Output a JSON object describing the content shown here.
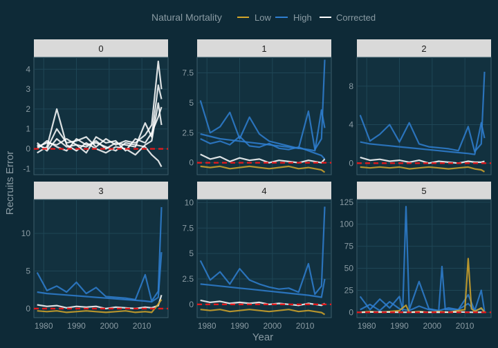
{
  "legend": {
    "title": "Natural Mortality",
    "entries": [
      {
        "label": "Low",
        "color": "#d4a62a"
      },
      {
        "label": "High",
        "color": "#2f7fd1"
      },
      {
        "label": "Corrected",
        "color": "#ffffff"
      }
    ]
  },
  "axis": {
    "xlabel": "Year",
    "ylabel": "Recruits Error"
  },
  "colors": {
    "background": "#0e2a37",
    "panel": "#12313f",
    "grid": "#1f4656",
    "strip": "#d9d9d9",
    "zero_line": "#e31a1c",
    "tick_text": "#8a9ba3"
  },
  "chart_data": [
    {
      "type": "line",
      "panel": "0",
      "xlim": [
        1977,
        2018
      ],
      "ylim": [
        -1.3,
        4.6
      ],
      "yticks": [
        -1,
        0,
        1,
        2,
        3,
        4
      ],
      "xticks": [
        1980,
        1990,
        2000,
        2010
      ],
      "show_xticks": false,
      "series": [
        {
          "name": "Corrected",
          "color": "#ffffff",
          "x": [
            1978,
            1981,
            1984,
            1987,
            1990,
            1993,
            1996,
            1999,
            2002,
            2005,
            2008,
            2011,
            2013,
            2015,
            2016
          ],
          "y": [
            0.1,
            0.3,
            0.2,
            0.5,
            0.2,
            0.1,
            0.4,
            0.0,
            0.3,
            0.2,
            0.1,
            1.3,
            0.6,
            3.2,
            2.5
          ]
        },
        {
          "name": "Corrected",
          "color": "#ffffff",
          "x": [
            1978,
            1981,
            1984,
            1987,
            1990,
            1993,
            1996,
            1999,
            2002,
            2005,
            2008,
            2011,
            2013,
            2015,
            2016
          ],
          "y": [
            0.2,
            0.0,
            1.0,
            0.3,
            0.4,
            0.6,
            0.1,
            0.5,
            0.2,
            0.4,
            0.3,
            0.7,
            1.2,
            4.4,
            3.0
          ]
        },
        {
          "name": "Corrected",
          "color": "#ffffff",
          "x": [
            1978,
            1981,
            1984,
            1987,
            1990,
            1993,
            1996,
            1999,
            2002,
            2005,
            2008,
            2011,
            2013,
            2015,
            2016
          ],
          "y": [
            -0.2,
            0.1,
            2.0,
            0.2,
            -0.1,
            0.3,
            0.0,
            -0.2,
            0.1,
            0.0,
            -0.3,
            0.2,
            0.4,
            2.3,
            1.2
          ]
        },
        {
          "name": "Corrected",
          "color": "#ffffff",
          "x": [
            1978,
            1981,
            1984,
            1987,
            1990,
            1993,
            1996,
            1999,
            2002,
            2005,
            2008,
            2011,
            2013,
            2015,
            2016
          ],
          "y": [
            0.0,
            0.4,
            0.1,
            -0.1,
            0.5,
            0.2,
            0.3,
            0.1,
            -0.1,
            0.3,
            0.2,
            0.1,
            -0.3,
            -0.6,
            -0.9
          ]
        },
        {
          "name": "Corrected",
          "color": "#ffffff",
          "x": [
            1978,
            1981,
            1984,
            1987,
            1990,
            1993,
            1996,
            1999,
            2002,
            2005,
            2008,
            2011,
            2013,
            2015,
            2016
          ],
          "y": [
            0.3,
            -0.1,
            0.5,
            0.1,
            0.2,
            -0.2,
            0.6,
            0.3,
            0.4,
            -0.1,
            0.5,
            0.3,
            0.8,
            1.6,
            2.1
          ]
        }
      ]
    },
    {
      "type": "line",
      "panel": "1",
      "xlim": [
        1977,
        2018
      ],
      "ylim": [
        -1.0,
        8.8
      ],
      "yticks": [
        0.0,
        2.5,
        5.0,
        7.5
      ],
      "xticks": [
        1980,
        1990,
        2000,
        2010
      ],
      "show_xticks": false,
      "series": [
        {
          "name": "High",
          "color": "#2f7fd1",
          "x": [
            1978,
            1981,
            1984,
            1987,
            1990,
            1993,
            1996,
            1999,
            2002,
            2005,
            2008,
            2011,
            2013,
            2015,
            2016
          ],
          "y": [
            5.2,
            2.5,
            3.0,
            4.2,
            2.0,
            3.8,
            2.4,
            1.8,
            1.6,
            1.4,
            1.2,
            4.3,
            1.1,
            2.0,
            8.6
          ]
        },
        {
          "name": "High",
          "color": "#2f7fd1",
          "x": [
            1978,
            1981,
            1984,
            1987,
            1990,
            1993,
            1996,
            1999,
            2002,
            2005,
            2008,
            2011,
            2013,
            2015,
            2016
          ],
          "y": [
            2.4,
            2.2,
            2.0,
            1.9,
            1.8,
            1.7,
            1.6,
            1.5,
            1.4,
            1.3,
            1.2,
            1.1,
            1.0,
            4.4,
            2.9
          ]
        },
        {
          "name": "High",
          "color": "#2f7fd1",
          "x": [
            1978,
            1981,
            1984,
            1987,
            1990,
            1993,
            1996,
            1999,
            2002,
            2005,
            2008,
            2011,
            2013,
            2015,
            2016
          ],
          "y": [
            2.0,
            1.6,
            1.8,
            1.5,
            2.2,
            1.4,
            1.3,
            1.6,
            1.2,
            1.1,
            1.3,
            1.0,
            0.8,
            0.6,
            0.3
          ]
        },
        {
          "name": "Corrected",
          "color": "#ffffff",
          "x": [
            1978,
            1981,
            1984,
            1987,
            1990,
            1993,
            1996,
            1999,
            2002,
            2005,
            2008,
            2011,
            2013,
            2015,
            2016
          ],
          "y": [
            0.7,
            0.3,
            0.5,
            0.1,
            0.4,
            0.2,
            0.3,
            0.0,
            0.2,
            0.1,
            0.0,
            0.2,
            0.1,
            0.0,
            0.3
          ]
        },
        {
          "name": "Low",
          "color": "#d4a62a",
          "x": [
            1978,
            1981,
            1984,
            1987,
            1990,
            1993,
            1996,
            1999,
            2002,
            2005,
            2008,
            2011,
            2013,
            2015,
            2016
          ],
          "y": [
            -0.3,
            -0.4,
            -0.3,
            -0.5,
            -0.4,
            -0.3,
            -0.4,
            -0.5,
            -0.4,
            -0.3,
            -0.5,
            -0.4,
            -0.5,
            -0.6,
            -0.8
          ]
        }
      ]
    },
    {
      "type": "line",
      "panel": "2",
      "xlim": [
        1977,
        2018
      ],
      "ylim": [
        -1.2,
        11.0
      ],
      "yticks": [
        0,
        4,
        8
      ],
      "xticks": [
        1980,
        1990,
        2000,
        2010
      ],
      "show_xticks": false,
      "series": [
        {
          "name": "High",
          "color": "#2f7fd1",
          "x": [
            1978,
            1981,
            1984,
            1987,
            1990,
            1993,
            1996,
            1999,
            2002,
            2005,
            2008,
            2011,
            2013,
            2015,
            2016
          ],
          "y": [
            5.0,
            2.3,
            3.0,
            4.0,
            2.2,
            4.2,
            2.0,
            1.7,
            1.6,
            1.5,
            1.3,
            3.8,
            1.2,
            2.0,
            9.5
          ]
        },
        {
          "name": "High",
          "color": "#2f7fd1",
          "x": [
            1978,
            1981,
            1984,
            1987,
            1990,
            1993,
            1996,
            1999,
            2002,
            2005,
            2008,
            2011,
            2013,
            2015,
            2016
          ],
          "y": [
            2.2,
            2.0,
            1.9,
            1.8,
            1.7,
            1.6,
            1.5,
            1.4,
            1.3,
            1.2,
            1.1,
            1.0,
            0.9,
            4.2,
            2.6
          ]
        },
        {
          "name": "Corrected",
          "color": "#ffffff",
          "x": [
            1978,
            1981,
            1984,
            1987,
            1990,
            1993,
            1996,
            1999,
            2002,
            2005,
            2008,
            2011,
            2013,
            2015,
            2016
          ],
          "y": [
            0.6,
            0.3,
            0.4,
            0.2,
            0.3,
            0.1,
            0.3,
            0.0,
            0.2,
            0.1,
            0.0,
            0.2,
            0.1,
            0.1,
            0.2
          ]
        },
        {
          "name": "Low",
          "color": "#d4a62a",
          "x": [
            1978,
            1981,
            1984,
            1987,
            1990,
            1993,
            1996,
            1999,
            2002,
            2005,
            2008,
            2011,
            2013,
            2015,
            2016
          ],
          "y": [
            -0.4,
            -0.5,
            -0.4,
            -0.5,
            -0.4,
            -0.6,
            -0.5,
            -0.4,
            -0.5,
            -0.6,
            -0.5,
            -0.4,
            -0.6,
            -0.7,
            -0.9
          ]
        }
      ]
    },
    {
      "type": "line",
      "panel": "3",
      "xlim": [
        1977,
        2018
      ],
      "ylim": [
        -1.2,
        14.5
      ],
      "yticks": [
        0,
        5,
        10
      ],
      "xticks": [
        1980,
        1990,
        2000,
        2010
      ],
      "show_xticks": true,
      "series": [
        {
          "name": "High",
          "color": "#2f7fd1",
          "x": [
            1978,
            1981,
            1984,
            1987,
            1990,
            1993,
            1996,
            1999,
            2002,
            2005,
            2008,
            2011,
            2013,
            2015,
            2016
          ],
          "y": [
            4.8,
            2.4,
            3.0,
            2.2,
            3.5,
            2.0,
            2.8,
            1.6,
            1.5,
            1.4,
            1.2,
            4.5,
            1.0,
            2.3,
            13.5
          ]
        },
        {
          "name": "High",
          "color": "#2f7fd1",
          "x": [
            1978,
            1981,
            1984,
            1987,
            1990,
            1993,
            1996,
            1999,
            2002,
            2005,
            2008,
            2011,
            2013,
            2015,
            2016
          ],
          "y": [
            2.2,
            2.0,
            1.9,
            1.8,
            1.7,
            1.6,
            1.5,
            1.4,
            1.3,
            1.2,
            1.1,
            1.0,
            0.9,
            1.5,
            7.5
          ]
        },
        {
          "name": "Corrected",
          "color": "#ffffff",
          "x": [
            1978,
            1981,
            1984,
            1987,
            1990,
            1993,
            1996,
            1999,
            2002,
            2005,
            2008,
            2011,
            2013,
            2015,
            2016
          ],
          "y": [
            0.5,
            0.3,
            0.4,
            0.1,
            0.3,
            0.2,
            0.3,
            0.0,
            0.2,
            0.1,
            0.0,
            0.2,
            0.1,
            0.4,
            1.8
          ]
        },
        {
          "name": "Low",
          "color": "#d4a62a",
          "x": [
            1978,
            1981,
            1984,
            1987,
            1990,
            1993,
            1996,
            1999,
            2002,
            2005,
            2008,
            2011,
            2013,
            2015,
            2016
          ],
          "y": [
            -0.3,
            -0.4,
            -0.3,
            -0.5,
            -0.4,
            -0.3,
            -0.4,
            -0.5,
            -0.4,
            -0.3,
            -0.5,
            -0.4,
            -0.5,
            0.6,
            1.2
          ]
        }
      ]
    },
    {
      "type": "line",
      "panel": "4",
      "xlim": [
        1977,
        2018
      ],
      "ylim": [
        -1.3,
        10.3
      ],
      "yticks": [
        0.0,
        2.5,
        5.0,
        7.5,
        10.0
      ],
      "xticks": [
        1980,
        1990,
        2000,
        2010
      ],
      "show_xticks": true,
      "series": [
        {
          "name": "High",
          "color": "#2f7fd1",
          "x": [
            1978,
            1981,
            1984,
            1987,
            1990,
            1993,
            1996,
            1999,
            2002,
            2005,
            2008,
            2011,
            2013,
            2015,
            2016
          ],
          "y": [
            4.3,
            2.4,
            3.2,
            2.0,
            3.5,
            2.4,
            2.0,
            1.7,
            1.5,
            1.6,
            1.2,
            4.0,
            1.0,
            1.8,
            9.6
          ]
        },
        {
          "name": "High",
          "color": "#2f7fd1",
          "x": [
            1978,
            1981,
            1984,
            1987,
            1990,
            1993,
            1996,
            1999,
            2002,
            2005,
            2008,
            2011,
            2013,
            2015,
            2016
          ],
          "y": [
            2.0,
            1.9,
            1.8,
            1.7,
            1.6,
            1.5,
            1.4,
            1.3,
            1.2,
            1.1,
            1.0,
            0.9,
            0.8,
            0.7,
            2.5
          ]
        },
        {
          "name": "Corrected",
          "color": "#ffffff",
          "x": [
            1978,
            1981,
            1984,
            1987,
            1990,
            1993,
            1996,
            1999,
            2002,
            2005,
            2008,
            2011,
            2013,
            2015,
            2016
          ],
          "y": [
            0.4,
            0.2,
            0.3,
            0.1,
            0.2,
            0.1,
            0.2,
            0.0,
            0.1,
            0.0,
            -0.1,
            0.1,
            0.0,
            -0.1,
            0.1
          ]
        },
        {
          "name": "Low",
          "color": "#d4a62a",
          "x": [
            1978,
            1981,
            1984,
            1987,
            1990,
            1993,
            1996,
            1999,
            2002,
            2005,
            2008,
            2011,
            2013,
            2015,
            2016
          ],
          "y": [
            -0.5,
            -0.6,
            -0.5,
            -0.7,
            -0.6,
            -0.5,
            -0.6,
            -0.7,
            -0.6,
            -0.5,
            -0.7,
            -0.6,
            -0.7,
            -0.8,
            -1.0
          ]
        }
      ]
    },
    {
      "type": "line",
      "panel": "5",
      "xlim": [
        1977,
        2018
      ],
      "ylim": [
        -6,
        128
      ],
      "yticks": [
        0,
        25,
        50,
        75,
        100,
        125
      ],
      "xticks": [
        1980,
        1990,
        2000,
        2010
      ],
      "show_xticks": true,
      "series": [
        {
          "name": "High",
          "color": "#2f7fd1",
          "x": [
            1978,
            1981,
            1984,
            1987,
            1990,
            1991,
            1992,
            1993,
            1996,
            1999,
            2002,
            2003,
            2004,
            2008,
            2011,
            2013,
            2015,
            2016
          ],
          "y": [
            18,
            3,
            15,
            5,
            18,
            2,
            120,
            3,
            35,
            4,
            2,
            52,
            3,
            3,
            20,
            2,
            25,
            1
          ]
        },
        {
          "name": "High",
          "color": "#2f7fd1",
          "x": [
            1978,
            1981,
            1984,
            1987,
            1990,
            1993,
            1996,
            1999,
            2002,
            2005,
            2008,
            2011,
            2013,
            2015,
            2016
          ],
          "y": [
            3,
            9,
            2,
            12,
            4,
            2,
            7,
            3,
            2,
            5,
            3,
            10,
            2,
            4,
            1
          ]
        },
        {
          "name": "Low",
          "color": "#d4a62a",
          "x": [
            1978,
            1981,
            1984,
            1987,
            1990,
            1992,
            1993,
            1996,
            1999,
            2002,
            2005,
            2008,
            2010,
            2011,
            2012,
            2013,
            2015,
            2016
          ],
          "y": [
            0,
            1,
            0,
            1,
            2,
            8,
            0,
            1,
            0,
            1,
            0,
            2,
            3,
            61,
            4,
            1,
            5,
            0
          ]
        },
        {
          "name": "Corrected",
          "color": "#ffffff",
          "x": [
            1978,
            1984,
            1990,
            1996,
            2002,
            2008,
            2013,
            2016
          ],
          "y": [
            0,
            0.5,
            0,
            0.3,
            0,
            0.4,
            0,
            0.2
          ]
        }
      ]
    }
  ]
}
